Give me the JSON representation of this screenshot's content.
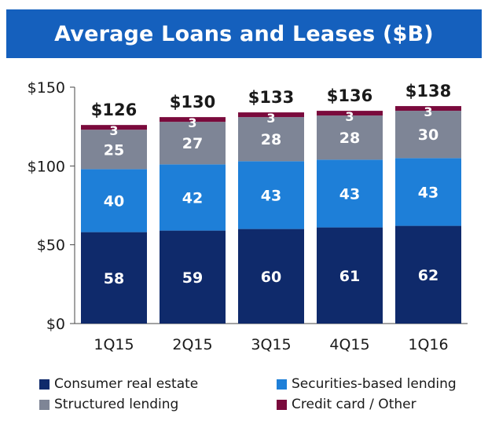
{
  "chart_data": {
    "type": "bar",
    "stacked": true,
    "title": "Average Loans and Leases ($B)",
    "categories": [
      "1Q15",
      "2Q15",
      "3Q15",
      "4Q15",
      "1Q16"
    ],
    "series": [
      {
        "name": "Consumer real estate",
        "values": [
          58,
          59,
          60,
          61,
          62
        ],
        "color": "#0f2a6b"
      },
      {
        "name": "Securities-based lending",
        "values": [
          40,
          42,
          43,
          43,
          43
        ],
        "color": "#1e7fd8"
      },
      {
        "name": "Structured lending",
        "values": [
          25,
          27,
          28,
          28,
          30
        ],
        "color": "#7e8596"
      },
      {
        "name": "Credit card / Other",
        "values": [
          3,
          3,
          3,
          3,
          3
        ],
        "color": "#7a0a3c"
      }
    ],
    "totals": [
      "$126",
      "$130",
      "$133",
      "$136",
      "$138"
    ],
    "ylim": [
      0,
      150
    ],
    "yticks": [
      0,
      50,
      100,
      150
    ],
    "ytick_labels": [
      "$0",
      "$50",
      "$100",
      "$150"
    ],
    "legend_position": "bottom"
  }
}
